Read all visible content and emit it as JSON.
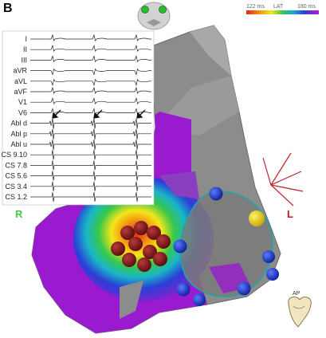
{
  "figure": {
    "panel_label": "B",
    "scale": {
      "min_label": "122 ms",
      "title": "LAT",
      "max_label": "180 ms"
    },
    "orientation": {
      "right": "R",
      "left": "L",
      "view": "AP"
    },
    "colors": {
      "right_marker": "#3fd13f",
      "left_marker": "#b8201f",
      "ablation_lesion": "#8b1a1a",
      "catheter_electrode": "#1f3cc8",
      "reference_electrode": "#f0d400",
      "anatomy": "#8a8a8a"
    }
  },
  "ecg": {
    "leads": [
      "I",
      "II",
      "III",
      "aVR",
      "aVL",
      "aVF",
      "V1",
      "V6",
      "Abl d",
      "Abl p",
      "Abl u",
      "CS 9.10",
      "CS 7.8",
      "CS 5.6",
      "CS 3.4",
      "CS 1.2"
    ]
  }
}
